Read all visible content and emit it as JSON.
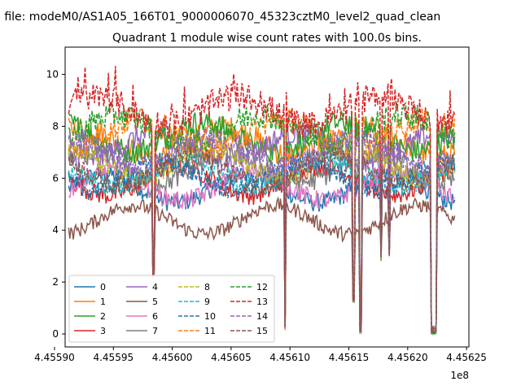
{
  "figure": {
    "suptitle": "n file: modeM0/AS1A05_166T01_9000006070_45323cztM0_level2_quad_clean"
  },
  "chart_data": {
    "type": "line",
    "title": "Quadrant 1 module wise count rates with 100.0s bins.",
    "xlabel": "",
    "ylabel": "",
    "x_offset_label": "1e8",
    "xlim": [
      4.455909,
      4.456252
    ],
    "ylim": [
      -0.5,
      11.05
    ],
    "x_ticks": [
      4.4559,
      4.45595,
      4.456,
      4.45605,
      4.4561,
      4.45615,
      4.4562,
      4.45625
    ],
    "x_tick_labels": [
      "4.45590",
      "4.45595",
      "4.45600",
      "4.45605",
      "4.45610",
      "4.45615",
      "4.45620",
      "4.45625"
    ],
    "y_ticks": [
      0,
      2,
      4,
      6,
      8,
      10
    ],
    "y_tick_labels": [
      "0",
      "2",
      "4",
      "6",
      "8",
      "10"
    ],
    "grid": false,
    "legend": {
      "placement": "lower-left",
      "columns": 4
    },
    "bin_seconds": 100,
    "x_range_values": [
      4.455912,
      4.45624
    ],
    "gaps": [
      {
        "x": 4.455984,
        "depth_to": 2.2
      },
      {
        "x": 4.456096,
        "depth_to": 0.1
      },
      {
        "x": 4.456154,
        "depth_to": 1.2
      },
      {
        "x": 4.45616,
        "depth_to": 0.0,
        "width": 1.2e-06
      },
      {
        "x": 4.456177,
        "depth_to": 2.8
      },
      {
        "x": 4.456184,
        "depth_to": 3.0
      },
      {
        "x": 4.456222,
        "depth_to": 0.0,
        "width": 2.8e-06
      }
    ],
    "series": [
      {
        "name": "0",
        "color": "#1f77b4",
        "dash": "solid",
        "base": 5.6
      },
      {
        "name": "1",
        "color": "#ff7f0e",
        "dash": "solid",
        "base": 7.4
      },
      {
        "name": "2",
        "color": "#2ca02c",
        "dash": "solid",
        "base": 7.6
      },
      {
        "name": "3",
        "color": "#d62728",
        "dash": "solid",
        "base": 5.9
      },
      {
        "name": "4",
        "color": "#9467bd",
        "dash": "solid",
        "base": 7.2
      },
      {
        "name": "5",
        "color": "#8c564b",
        "dash": "solid",
        "base": 4.4
      },
      {
        "name": "6",
        "color": "#e377c2",
        "dash": "solid",
        "base": 5.7
      },
      {
        "name": "7",
        "color": "#7f7f7f",
        "dash": "solid",
        "base": 6.4
      },
      {
        "name": "8",
        "color": "#bcbd22",
        "dash": "dashed",
        "base": 6.6
      },
      {
        "name": "9",
        "color": "#17becf",
        "dash": "dashed",
        "base": 6.2
      },
      {
        "name": "10",
        "color": "#1f77b4",
        "dash": "dashed",
        "base": 6.1
      },
      {
        "name": "11",
        "color": "#ff7f0e",
        "dash": "dashed",
        "base": 7.7
      },
      {
        "name": "12",
        "color": "#2ca02c",
        "dash": "dashed",
        "base": 7.9
      },
      {
        "name": "13",
        "color": "#d62728",
        "dash": "dashed",
        "base": 8.6
      },
      {
        "name": "14",
        "color": "#9467bd",
        "dash": "dashed",
        "base": 7.0
      },
      {
        "name": "15",
        "color": "#8c564b",
        "dash": "dashed",
        "base": 6.3
      }
    ]
  }
}
